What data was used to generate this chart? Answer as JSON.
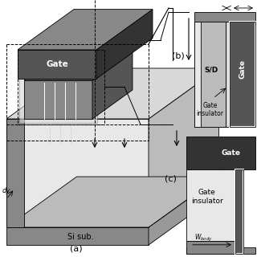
{
  "colors": {
    "dark_gray": "#555555",
    "darker_gray": "#333333",
    "mid_gray": "#888888",
    "light_gray": "#bbbbbb",
    "lighter_gray": "#d8d8d8",
    "very_light": "#e8e8e8",
    "white": "#ffffff",
    "black": "#000000",
    "substrate_gray": "#999999"
  },
  "labels": {
    "gate": "Gate",
    "si_sub": "Si sub.",
    "sd": "S/D",
    "a": "(a)",
    "b": "(b)",
    "c": "(c)",
    "gate_insulator": "Gate\ninsulator",
    "wbody": "W"
  }
}
